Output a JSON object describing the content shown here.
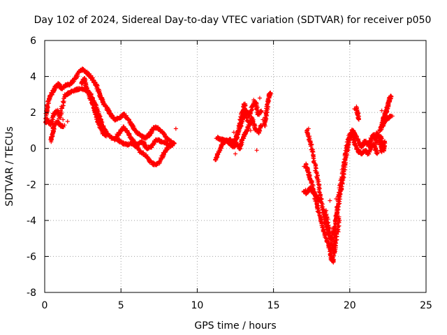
{
  "chart_data": {
    "type": "scatter",
    "title": "Day 102 of 2024, Sidereal Day-to-day VTEC variation (SDTVAR) for receiver p050",
    "xlabel": "GPS time / hours",
    "ylabel": "SDTVAR / TECUs",
    "xlim": [
      0,
      25
    ],
    "ylim": [
      -8,
      6
    ],
    "xticks": [
      "0",
      "5",
      "10",
      "15",
      "20",
      "25"
    ],
    "yticks": [
      "-8",
      "-6",
      "-4",
      "-2",
      "0",
      "2",
      "4",
      "6"
    ],
    "grid": true,
    "marker": "+",
    "color": "#ff0000",
    "series": [
      {
        "name": "SDTVAR",
        "tracks": [
          [
            [
              0.0,
              1.6
            ],
            [
              0.15,
              2.2
            ],
            [
              0.3,
              2.8
            ],
            [
              0.5,
              3.1
            ],
            [
              0.7,
              3.4
            ],
            [
              0.9,
              3.6
            ],
            [
              1.1,
              3.3
            ],
            [
              1.4,
              3.5
            ],
            [
              1.7,
              3.6
            ],
            [
              2.0,
              3.9
            ],
            [
              2.3,
              4.3
            ],
            [
              2.5,
              4.4
            ],
            [
              2.8,
              4.2
            ],
            [
              3.1,
              3.9
            ],
            [
              3.4,
              3.5
            ],
            [
              3.6,
              3.0
            ],
            [
              3.8,
              2.6
            ],
            [
              4.1,
              2.2
            ],
            [
              4.3,
              1.9
            ],
            [
              4.6,
              1.6
            ],
            [
              4.9,
              1.7
            ],
            [
              5.2,
              1.9
            ],
            [
              5.5,
              1.6
            ],
            [
              5.8,
              1.2
            ],
            [
              6.0,
              0.9
            ],
            [
              6.3,
              0.7
            ],
            [
              6.6,
              0.6
            ],
            [
              6.9,
              0.8
            ],
            [
              7.2,
              1.2
            ],
            [
              7.5,
              1.1
            ],
            [
              7.8,
              0.8
            ],
            [
              8.1,
              0.5
            ],
            [
              8.4,
              0.3
            ]
          ],
          [
            [
              0.05,
              1.4
            ],
            [
              0.2,
              1.6
            ],
            [
              0.4,
              1.3
            ],
            [
              0.6,
              1.9
            ],
            [
              0.8,
              2.1
            ],
            [
              1.0,
              1.7
            ],
            [
              1.3,
              2.9
            ],
            [
              1.6,
              3.1
            ],
            [
              1.9,
              3.2
            ],
            [
              2.2,
              3.3
            ],
            [
              2.5,
              3.3
            ],
            [
              2.8,
              3.2
            ],
            [
              3.0,
              3.0
            ],
            [
              3.3,
              2.5
            ],
            [
              3.5,
              2.0
            ],
            [
              3.7,
              1.5
            ],
            [
              3.9,
              1.1
            ],
            [
              4.1,
              0.8
            ],
            [
              4.4,
              0.6
            ],
            [
              4.8,
              0.5
            ],
            [
              5.1,
              0.3
            ],
            [
              5.4,
              0.2
            ],
            [
              5.7,
              0.3
            ],
            [
              6.0,
              0.1
            ],
            [
              6.3,
              -0.2
            ],
            [
              6.6,
              -0.4
            ],
            [
              6.9,
              -0.7
            ],
            [
              7.2,
              -0.9
            ],
            [
              7.5,
              -0.8
            ],
            [
              7.8,
              -0.3
            ],
            [
              8.1,
              0.1
            ],
            [
              8.4,
              0.2
            ]
          ],
          [
            [
              0.4,
              0.4
            ],
            [
              0.5,
              0.8
            ],
            [
              0.6,
              1.2
            ],
            [
              0.8,
              1.5
            ],
            [
              1.0,
              1.3
            ],
            [
              1.2,
              1.2
            ]
          ],
          [
            [
              2.4,
              3.6
            ],
            [
              2.6,
              3.9
            ],
            [
              2.7,
              3.4
            ],
            [
              2.9,
              3.0
            ],
            [
              3.1,
              2.6
            ],
            [
              3.3,
              2.1
            ],
            [
              3.4,
              1.7
            ],
            [
              3.6,
              1.3
            ],
            [
              3.8,
              0.9
            ],
            [
              4.0,
              0.7
            ]
          ],
          [
            [
              4.6,
              0.5
            ],
            [
              4.9,
              0.9
            ],
            [
              5.2,
              1.2
            ],
            [
              5.5,
              0.8
            ],
            [
              5.8,
              0.4
            ],
            [
              6.1,
              0.2
            ],
            [
              6.4,
              0.4
            ],
            [
              6.7,
              0.0
            ],
            [
              7.0,
              0.1
            ],
            [
              7.3,
              0.5
            ],
            [
              7.6,
              0.4
            ],
            [
              7.9,
              0.3
            ],
            [
              8.2,
              0.2
            ],
            [
              8.5,
              0.3
            ]
          ],
          [
            [
              11.2,
              -0.6
            ],
            [
              11.4,
              -0.2
            ],
            [
              11.6,
              0.2
            ],
            [
              11.8,
              0.4
            ],
            [
              12.1,
              0.5
            ],
            [
              12.4,
              0.3
            ],
            [
              12.6,
              0.6
            ],
            [
              12.8,
              1.2
            ],
            [
              13.0,
              1.7
            ],
            [
              13.2,
              2.1
            ],
            [
              13.4,
              1.8
            ],
            [
              13.6,
              2.3
            ],
            [
              13.8,
              2.6
            ],
            [
              14.0,
              1.9
            ],
            [
              14.2,
              2.1
            ]
          ],
          [
            [
              11.3,
              0.6
            ],
            [
              11.5,
              0.5
            ],
            [
              11.7,
              0.5
            ],
            [
              12.0,
              0.4
            ],
            [
              12.2,
              0.2
            ],
            [
              12.4,
              0.1
            ],
            [
              12.6,
              0.3
            ],
            [
              12.8,
              0.0
            ],
            [
              13.0,
              0.6
            ],
            [
              13.2,
              0.9
            ],
            [
              13.4,
              1.3
            ],
            [
              13.6,
              1.7
            ],
            [
              13.8,
              1.1
            ],
            [
              14.0,
              0.9
            ],
            [
              14.2,
              1.3
            ]
          ],
          [
            [
              12.5,
              0.5
            ],
            [
              12.7,
              1.0
            ],
            [
              12.9,
              1.9
            ],
            [
              13.1,
              2.5
            ],
            [
              13.3,
              1.5
            ]
          ],
          [
            [
              14.4,
              1.3
            ],
            [
              14.5,
              1.8
            ],
            [
              14.6,
              2.4
            ],
            [
              14.7,
              2.9
            ],
            [
              14.8,
              3.1
            ]
          ],
          [
            [
              17.1,
              -0.9
            ],
            [
              17.3,
              -1.4
            ],
            [
              17.5,
              -1.9
            ],
            [
              17.7,
              -2.6
            ],
            [
              17.9,
              -3.3
            ],
            [
              18.1,
              -4.0
            ],
            [
              18.3,
              -4.6
            ],
            [
              18.5,
              -5.1
            ],
            [
              18.7,
              -5.6
            ],
            [
              18.8,
              -6.1
            ],
            [
              18.9,
              -6.3
            ],
            [
              19.0,
              -5.2
            ],
            [
              19.1,
              -4.0
            ],
            [
              19.2,
              -3.0
            ],
            [
              19.4,
              -2.0
            ],
            [
              19.6,
              -0.9
            ],
            [
              19.8,
              0.1
            ],
            [
              20.0,
              0.8
            ],
            [
              20.2,
              0.7
            ],
            [
              20.4,
              0.1
            ],
            [
              20.6,
              -0.2
            ],
            [
              20.8,
              -0.3
            ],
            [
              21.0,
              -0.1
            ],
            [
              21.2,
              -0.3
            ],
            [
              21.4,
              0.1
            ],
            [
              21.6,
              0.2
            ],
            [
              21.8,
              -0.3
            ]
          ],
          [
            [
              17.2,
              1.0
            ],
            [
              17.4,
              0.4
            ],
            [
              17.6,
              -0.4
            ],
            [
              17.8,
              -1.3
            ],
            [
              18.0,
              -2.2
            ],
            [
              18.2,
              -3.3
            ],
            [
              18.4,
              -4.1
            ],
            [
              18.6,
              -4.7
            ],
            [
              18.8,
              -5.1
            ],
            [
              19.0,
              -4.3
            ],
            [
              19.2,
              -3.4
            ],
            [
              19.4,
              -2.4
            ],
            [
              19.6,
              -1.4
            ],
            [
              19.8,
              -0.2
            ],
            [
              20.0,
              0.5
            ],
            [
              20.2,
              1.0
            ],
            [
              20.4,
              0.7
            ],
            [
              20.6,
              0.3
            ],
            [
              20.8,
              0.1
            ],
            [
              21.0,
              0.4
            ],
            [
              21.2,
              0.2
            ],
            [
              21.4,
              0.5
            ],
            [
              21.6,
              0.8
            ],
            [
              21.8,
              0.3
            ]
          ],
          [
            [
              17.0,
              -2.4
            ],
            [
              17.2,
              -2.5
            ],
            [
              17.4,
              -2.2
            ],
            [
              17.6,
              -2.4
            ],
            [
              17.8,
              -2.6
            ],
            [
              18.0,
              -2.9
            ]
          ],
          [
            [
              18.4,
              -3.5
            ],
            [
              18.6,
              -4.3
            ],
            [
              18.8,
              -5.3
            ],
            [
              19.0,
              -5.8
            ],
            [
              19.2,
              -4.6
            ],
            [
              19.3,
              -3.8
            ]
          ],
          [
            [
              20.4,
              2.3
            ],
            [
              20.5,
              2.0
            ],
            [
              20.6,
              1.6
            ]
          ],
          [
            [
              21.8,
              0.9
            ],
            [
              21.9,
              0.6
            ],
            [
              22.0,
              0.3
            ],
            [
              22.1,
              -0.2
            ]
          ],
          [
            [
              22.0,
              0.7
            ],
            [
              22.1,
              0.3
            ],
            [
              22.2,
              -0.1
            ],
            [
              22.3,
              0.4
            ]
          ],
          [
            [
              22.0,
              1.0
            ],
            [
              22.1,
              1.3
            ],
            [
              22.2,
              1.6
            ],
            [
              22.3,
              1.9
            ],
            [
              22.4,
              2.1
            ],
            [
              22.5,
              2.4
            ],
            [
              22.6,
              2.7
            ],
            [
              22.7,
              2.9
            ]
          ],
          [
            [
              22.1,
              1.2
            ],
            [
              22.3,
              1.5
            ],
            [
              22.5,
              1.7
            ],
            [
              22.7,
              1.8
            ]
          ]
        ],
        "points": [
          [
            0.0,
            1.4
          ],
          [
            0.1,
            2.1
          ],
          [
            1.3,
            1.3
          ],
          [
            1.5,
            1.5
          ],
          [
            1.0,
            1.8
          ],
          [
            1.2,
            1.6
          ],
          [
            8.6,
            1.1
          ],
          [
            12.4,
            0.9
          ],
          [
            12.5,
            -0.3
          ],
          [
            13.5,
            1.0
          ],
          [
            13.7,
            2.7
          ],
          [
            13.8,
            1.0
          ],
          [
            13.9,
            -0.1
          ],
          [
            14.1,
            2.8
          ],
          [
            14.3,
            1.6
          ],
          [
            17.0,
            -1.0
          ],
          [
            17.1,
            -2.3
          ],
          [
            17.3,
            1.1
          ],
          [
            18.7,
            -2.9
          ],
          [
            19.3,
            -4.3
          ],
          [
            19.1,
            -2.8
          ],
          [
            20.3,
            2.2
          ],
          [
            22.1,
            2.1
          ],
          [
            22.8,
            1.8
          ]
        ]
      }
    ]
  }
}
